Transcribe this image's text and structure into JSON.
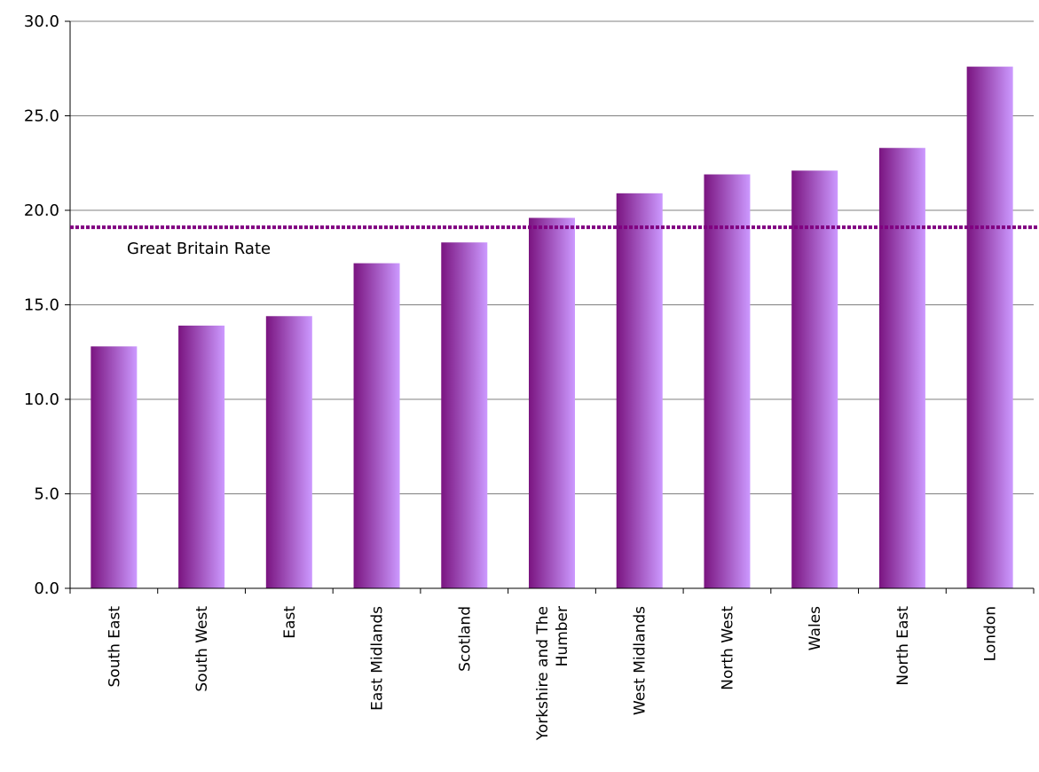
{
  "chart_data": {
    "type": "bar",
    "categories": [
      [
        "South East"
      ],
      [
        "South West"
      ],
      [
        "East"
      ],
      [
        "East Midlands"
      ],
      [
        "Scotland"
      ],
      [
        "Yorkshire and The",
        "Humber"
      ],
      [
        "West Midlands"
      ],
      [
        "North West"
      ],
      [
        "Wales"
      ],
      [
        "North East"
      ],
      [
        "London"
      ]
    ],
    "values": [
      12.8,
      13.9,
      14.4,
      17.2,
      18.3,
      19.6,
      20.9,
      21.9,
      22.1,
      23.3,
      27.6
    ],
    "ylim": [
      0,
      30
    ],
    "yticks": [
      "0.0",
      "5.0",
      "10.0",
      "15.0",
      "20.0",
      "25.0",
      "30.0"
    ],
    "ytick_values": [
      0,
      5,
      10,
      15,
      20,
      25,
      30
    ],
    "grid": true,
    "reference_line": {
      "label": "Great Britain Rate",
      "value": 19.1
    },
    "colors": {
      "bar_dark": "#7a1480",
      "bar_light": "#cc99ff",
      "reference": "#800080",
      "grid": "#808080",
      "axis": "#000000"
    }
  }
}
